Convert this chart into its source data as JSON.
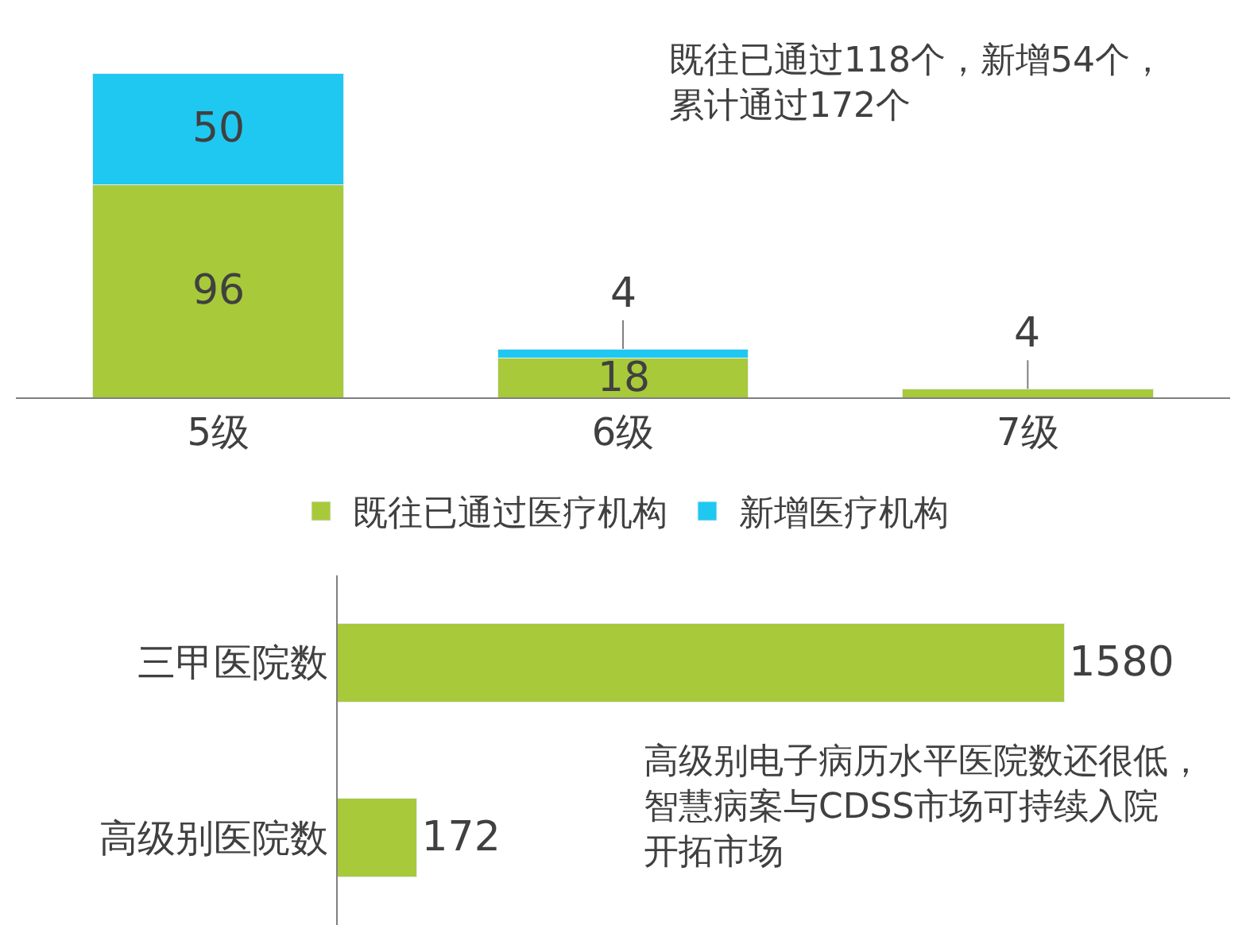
{
  "chart_data": [
    {
      "type": "bar",
      "stacked": true,
      "categories": [
        "5级",
        "6级",
        "7级"
      ],
      "series": [
        {
          "name": "既往已通过医疗机构",
          "color": "#a8c93a",
          "values": [
            96,
            18,
            4
          ],
          "value_labels": [
            "96",
            "18",
            "4"
          ]
        },
        {
          "name": "新增医疗机构",
          "color": "#1fc8f0",
          "values": [
            50,
            4,
            null
          ],
          "value_labels": [
            "50",
            "4",
            null
          ]
        }
      ],
      "legend": "bottom",
      "annotations": [
        "既往已通过118个，新增54个，累计通过172个"
      ]
    },
    {
      "type": "bar",
      "orientation": "horizontal",
      "categories": [
        "三甲医院数",
        "高级别医院数"
      ],
      "series": [
        {
          "color": "#a8c93a",
          "values": [
            1580,
            172
          ]
        }
      ],
      "data_labels": true,
      "legend": false,
      "annotations": [
        "高级别电子病历水平医院数还很低，智慧病案与CDSS市场可持续入院开拓市场"
      ]
    }
  ]
}
